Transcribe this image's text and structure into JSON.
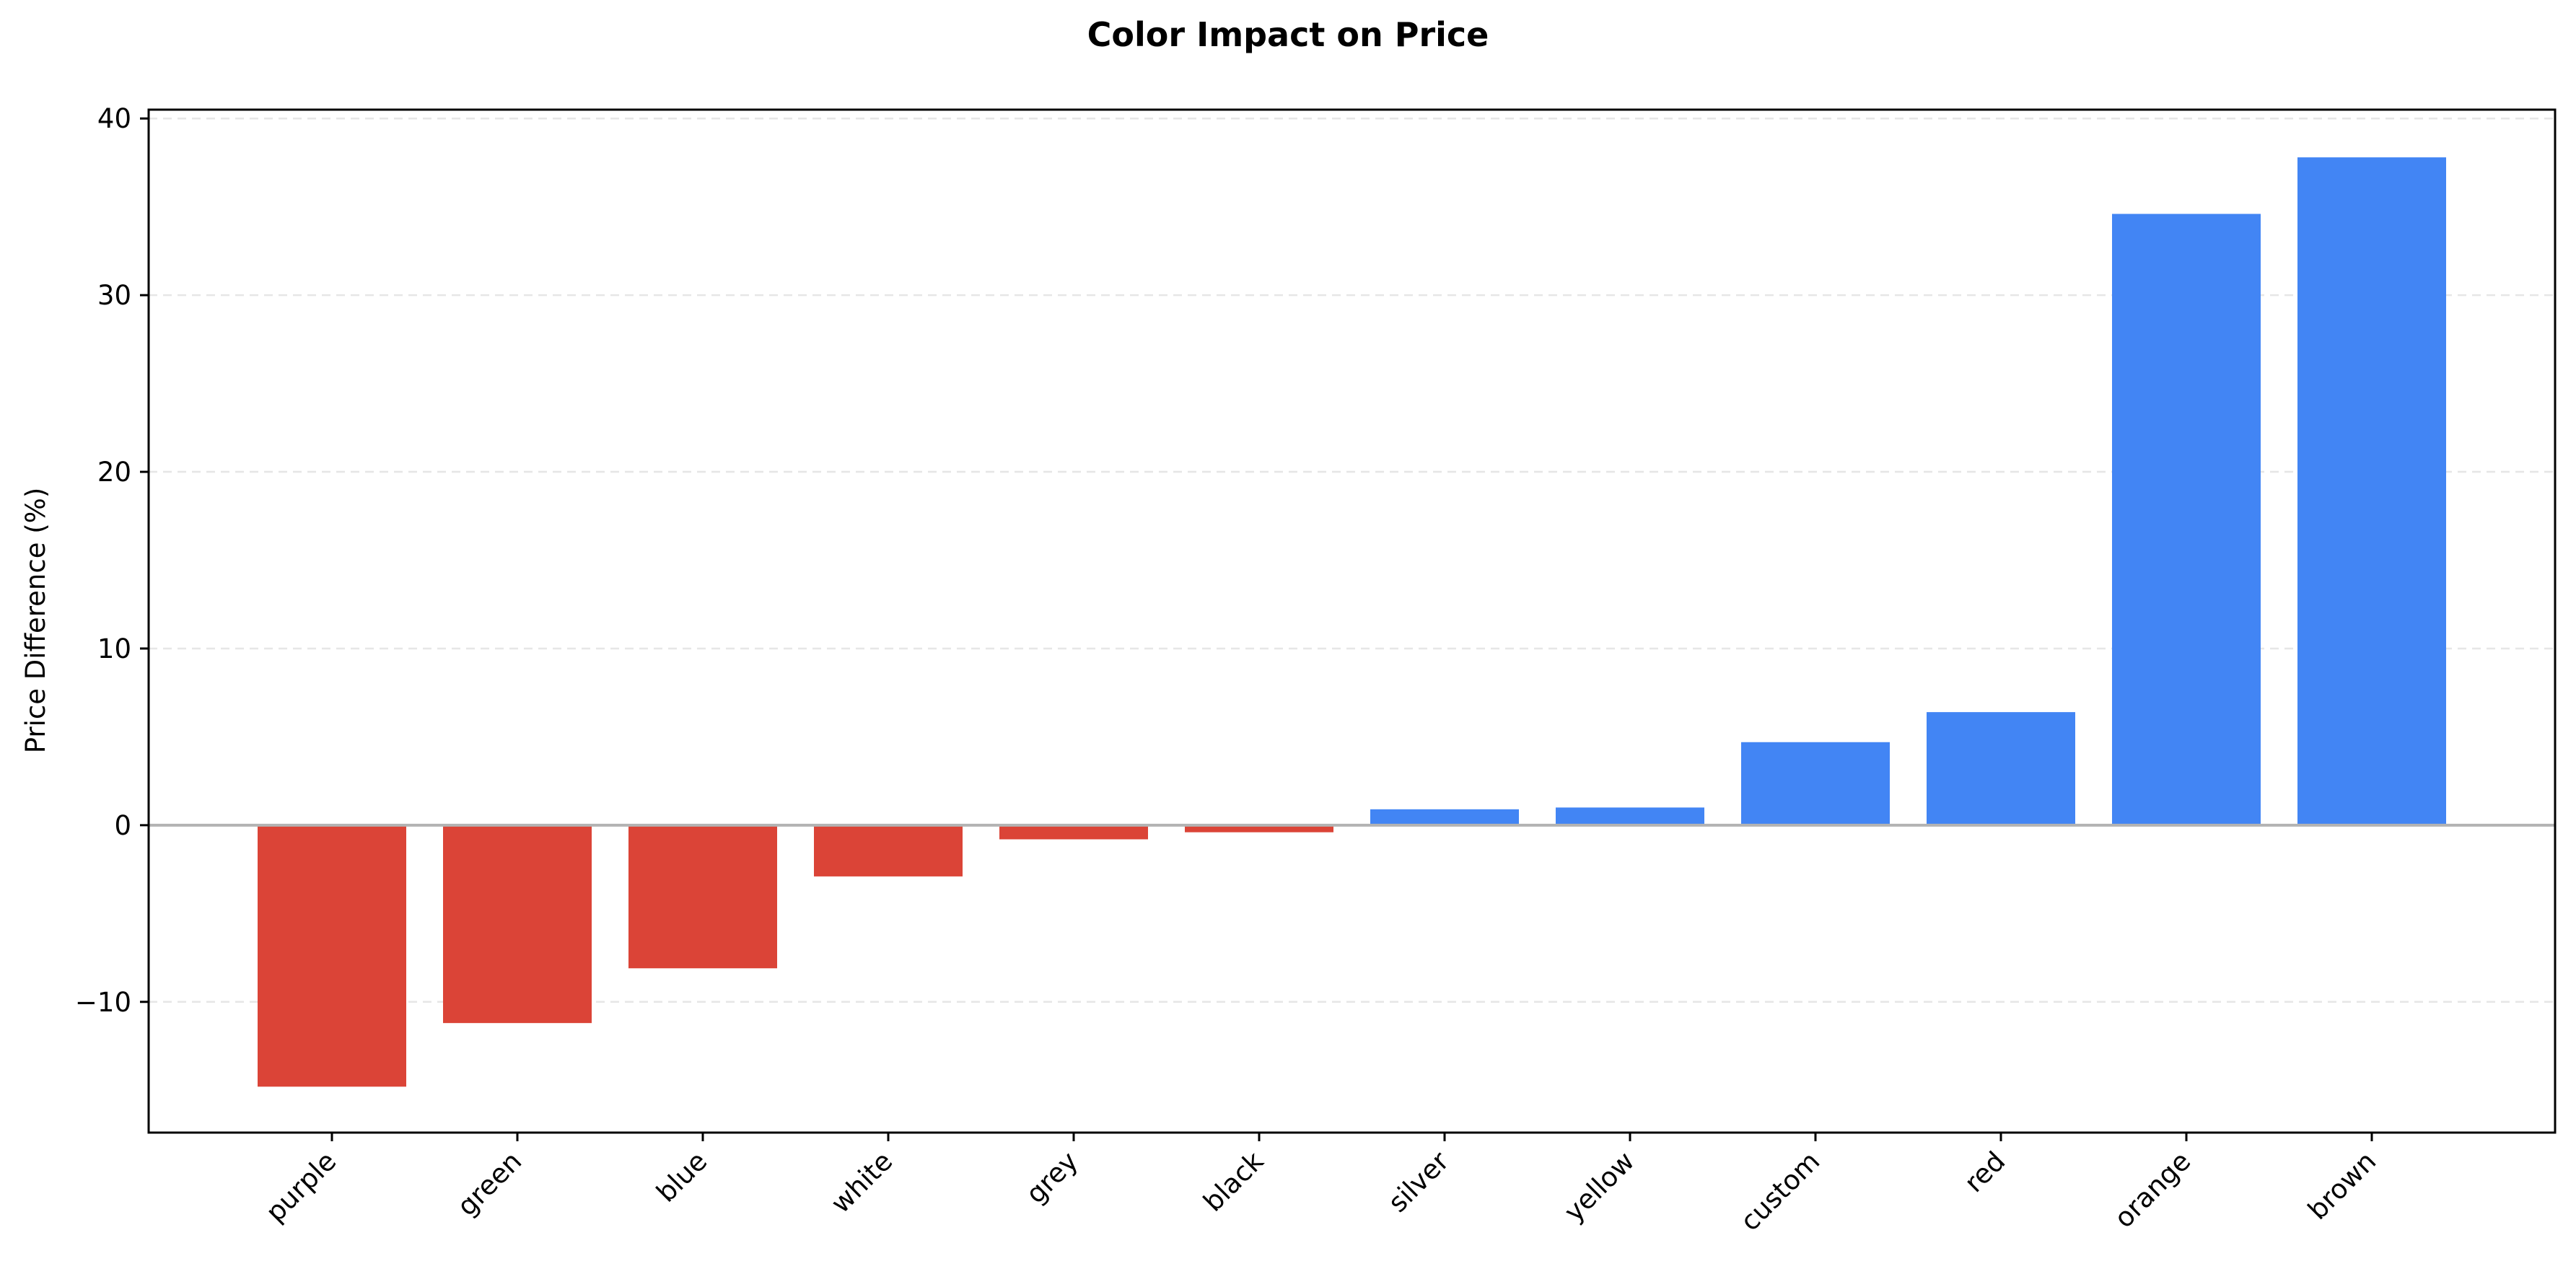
{
  "chart_data": {
    "type": "bar",
    "title": "Color Impact on Price",
    "xlabel": "",
    "ylabel": "Price Difference (%)",
    "categories": [
      "purple",
      "green",
      "blue",
      "white",
      "grey",
      "black",
      "silver",
      "yellow",
      "custom",
      "red",
      "orange",
      "brown"
    ],
    "values": [
      -14.8,
      -11.2,
      -8.1,
      -2.9,
      -0.8,
      -0.4,
      0.9,
      1.0,
      4.7,
      6.4,
      34.6,
      37.8
    ],
    "ylim": [
      -17.4,
      40.5
    ],
    "yticks": [
      -10,
      0,
      10,
      20,
      30,
      40
    ],
    "ytick_labels": [
      "−10",
      "0",
      "10",
      "20",
      "30",
      "40"
    ],
    "grid": "horizontal, dashed",
    "colors": {
      "negative": "#DB4437",
      "positive": "#4285F4",
      "zero_line": "#b3b3b3",
      "grid": "#e6e6e6"
    }
  }
}
